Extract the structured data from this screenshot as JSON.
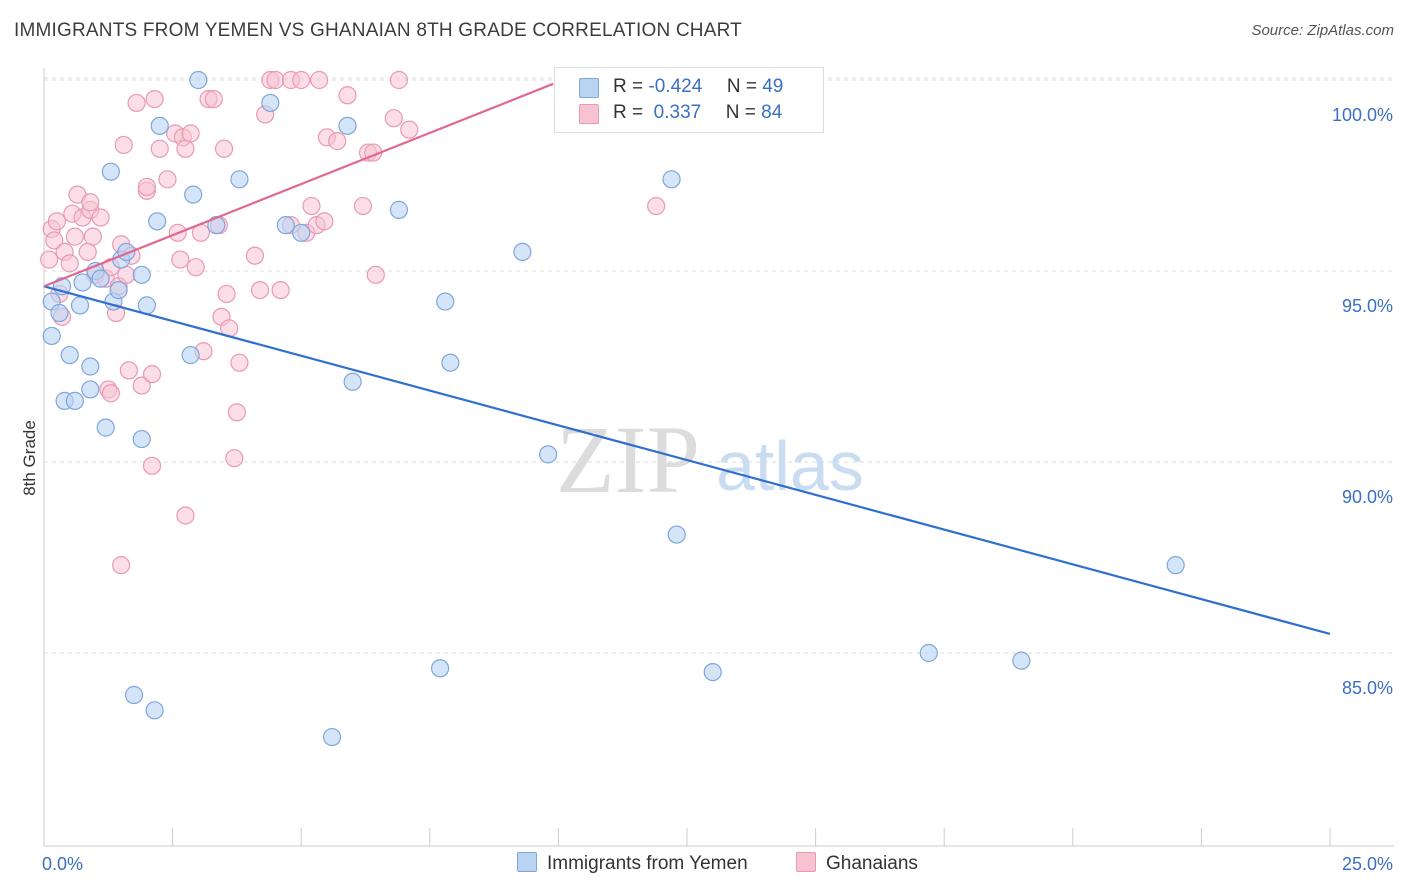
{
  "header": {
    "title": "IMMIGRANTS FROM YEMEN VS GHANAIAN 8TH GRADE CORRELATION CHART",
    "source": "Source: ZipAtlas.com"
  },
  "stats_legend": {
    "rows": [
      {
        "r_label": "R =",
        "r_value": "-0.424",
        "n_label": "N =",
        "n_value": "49"
      },
      {
        "r_label": "R =",
        "r_value": " 0.337",
        "n_label": "N =",
        "n_value": "84"
      }
    ]
  },
  "watermark": {
    "part1": "ZIP",
    "part2": "atlas"
  },
  "chart_data": {
    "type": "scatter",
    "title": "IMMIGRANTS FROM YEMEN VS GHANAIAN 8TH GRADE CORRELATION CHART",
    "ylabel": "8th Grade",
    "xlabel": "",
    "xlim": [
      0,
      25
    ],
    "ylim": [
      80.5,
      100.5
    ],
    "x_tick_labels": [
      "0.0%",
      "25.0%"
    ],
    "y_ticks": [
      85,
      90,
      95,
      100
    ],
    "y_tick_labels": [
      "85.0%",
      "90.0%",
      "95.0%",
      "100.0%"
    ],
    "grid": true,
    "legend_position": "bottom-center",
    "colors": {
      "blue_fill": "#b9d3f3",
      "blue_stroke": "#7fa6db",
      "blue_line": "#2f6fce",
      "pink_fill": "#f7c3d3",
      "pink_stroke": "#e99ab2",
      "pink_line": "#e0698f",
      "axis_label": "#3a6fc4",
      "grid": "#dddddd"
    },
    "series": [
      {
        "name": "Immigrants from Yemen",
        "trend": {
          "x": [
            0.0,
            25.0
          ],
          "y": [
            94.6,
            85.5
          ]
        },
        "points": [
          [
            0.15,
            94.2
          ],
          [
            0.15,
            93.3
          ],
          [
            0.3,
            93.9
          ],
          [
            0.35,
            94.6
          ],
          [
            0.5,
            92.8
          ],
          [
            0.4,
            91.6
          ],
          [
            0.6,
            91.6
          ],
          [
            0.7,
            94.1
          ],
          [
            0.75,
            94.7
          ],
          [
            0.9,
            92.5
          ],
          [
            0.9,
            91.9
          ],
          [
            1.0,
            95.0
          ],
          [
            1.1,
            94.8
          ],
          [
            1.2,
            90.9
          ],
          [
            1.35,
            94.2
          ],
          [
            1.45,
            94.5
          ],
          [
            1.5,
            95.3
          ],
          [
            1.6,
            95.5
          ],
          [
            1.3,
            97.6
          ],
          [
            1.9,
            94.9
          ],
          [
            1.9,
            90.6
          ],
          [
            2.0,
            94.1
          ],
          [
            2.2,
            96.3
          ],
          [
            2.25,
            98.8
          ],
          [
            2.9,
            97.0
          ],
          [
            3.0,
            100.0
          ],
          [
            3.35,
            96.2
          ],
          [
            3.8,
            97.4
          ],
          [
            4.4,
            99.4
          ],
          [
            4.7,
            96.2
          ],
          [
            5.0,
            96.0
          ],
          [
            5.9,
            98.8
          ],
          [
            6.0,
            92.1
          ],
          [
            6.9,
            96.6
          ],
          [
            7.8,
            94.2
          ],
          [
            7.9,
            92.6
          ],
          [
            9.3,
            95.5
          ],
          [
            9.8,
            90.2
          ],
          [
            12.2,
            97.4
          ],
          [
            12.3,
            88.1
          ],
          [
            2.85,
            92.8
          ],
          [
            1.75,
            83.9
          ],
          [
            2.15,
            83.5
          ],
          [
            5.6,
            82.8
          ],
          [
            7.7,
            84.6
          ],
          [
            13.0,
            84.5
          ],
          [
            17.2,
            85.0
          ],
          [
            19.0,
            84.8
          ],
          [
            22.0,
            87.3
          ]
        ]
      },
      {
        "name": "Ghanaians",
        "trend": {
          "x": [
            0.0,
            9.9
          ],
          "y": [
            94.6,
            99.9
          ]
        },
        "points": [
          [
            0.1,
            95.3
          ],
          [
            0.15,
            96.1
          ],
          [
            0.2,
            95.8
          ],
          [
            0.25,
            96.3
          ],
          [
            0.3,
            94.4
          ],
          [
            0.35,
            93.8
          ],
          [
            0.4,
            95.5
          ],
          [
            0.5,
            95.2
          ],
          [
            0.55,
            96.5
          ],
          [
            0.6,
            95.9
          ],
          [
            0.65,
            97.0
          ],
          [
            0.75,
            96.4
          ],
          [
            0.85,
            95.5
          ],
          [
            0.9,
            96.6
          ],
          [
            0.95,
            95.9
          ],
          [
            1.0,
            94.9
          ],
          [
            1.1,
            96.4
          ],
          [
            1.2,
            94.8
          ],
          [
            1.3,
            95.1
          ],
          [
            1.4,
            93.9
          ],
          [
            1.45,
            94.6
          ],
          [
            1.5,
            95.7
          ],
          [
            1.55,
            98.3
          ],
          [
            1.6,
            94.9
          ],
          [
            1.65,
            92.4
          ],
          [
            1.7,
            95.4
          ],
          [
            1.25,
            91.9
          ],
          [
            1.3,
            91.8
          ],
          [
            1.9,
            92.0
          ],
          [
            2.0,
            97.1
          ],
          [
            2.1,
            92.3
          ],
          [
            2.15,
            99.5
          ],
          [
            2.25,
            98.2
          ],
          [
            2.4,
            97.4
          ],
          [
            2.55,
            98.6
          ],
          [
            2.6,
            96.0
          ],
          [
            2.65,
            95.3
          ],
          [
            2.7,
            98.5
          ],
          [
            2.75,
            98.2
          ],
          [
            2.85,
            98.6
          ],
          [
            2.95,
            95.1
          ],
          [
            3.05,
            96.0
          ],
          [
            3.1,
            92.9
          ],
          [
            3.2,
            99.5
          ],
          [
            3.3,
            99.5
          ],
          [
            3.4,
            96.2
          ],
          [
            3.45,
            93.8
          ],
          [
            3.5,
            98.2
          ],
          [
            3.55,
            94.4
          ],
          [
            3.6,
            93.5
          ],
          [
            3.75,
            91.3
          ],
          [
            3.8,
            92.6
          ],
          [
            4.1,
            95.4
          ],
          [
            4.2,
            94.5
          ],
          [
            4.3,
            99.1
          ],
          [
            4.4,
            100.0
          ],
          [
            4.5,
            100.0
          ],
          [
            4.6,
            94.5
          ],
          [
            4.8,
            96.2
          ],
          [
            4.8,
            100.0
          ],
          [
            5.1,
            96.0
          ],
          [
            5.2,
            96.7
          ],
          [
            5.3,
            96.2
          ],
          [
            5.0,
            100.0
          ],
          [
            5.35,
            100.0
          ],
          [
            5.45,
            96.3
          ],
          [
            5.5,
            98.5
          ],
          [
            5.7,
            98.4
          ],
          [
            5.9,
            99.6
          ],
          [
            6.2,
            96.7
          ],
          [
            6.3,
            98.1
          ],
          [
            6.4,
            98.1
          ],
          [
            6.45,
            94.9
          ],
          [
            6.8,
            99.0
          ],
          [
            6.9,
            100.0
          ],
          [
            7.1,
            98.7
          ],
          [
            11.9,
            96.7
          ],
          [
            1.8,
            99.4
          ],
          [
            2.0,
            97.2
          ],
          [
            1.5,
            87.3
          ],
          [
            2.1,
            89.9
          ],
          [
            2.75,
            88.6
          ],
          [
            3.7,
            90.1
          ],
          [
            0.9,
            96.8
          ]
        ]
      }
    ]
  },
  "bottom_legend": {
    "items": [
      {
        "label": "Immigrants from Yemen"
      },
      {
        "label": "Ghanaians"
      }
    ]
  }
}
